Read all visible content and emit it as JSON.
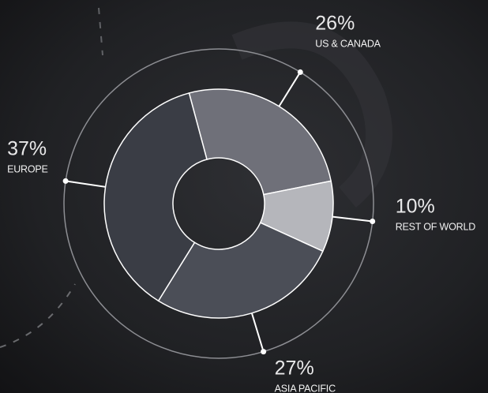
{
  "chart_data": {
    "type": "donut",
    "categories": [
      "US & CANADA",
      "REST OF WORLD",
      "ASIA PACIFIC",
      "EUROPE"
    ],
    "values": [
      26,
      10,
      27,
      37
    ],
    "value_labels": [
      "26%",
      "10%",
      "27%",
      "37%"
    ],
    "colors": [
      "#6f7079",
      "#b5b6bb",
      "#4b4e57",
      "#3a3d45"
    ]
  }
}
